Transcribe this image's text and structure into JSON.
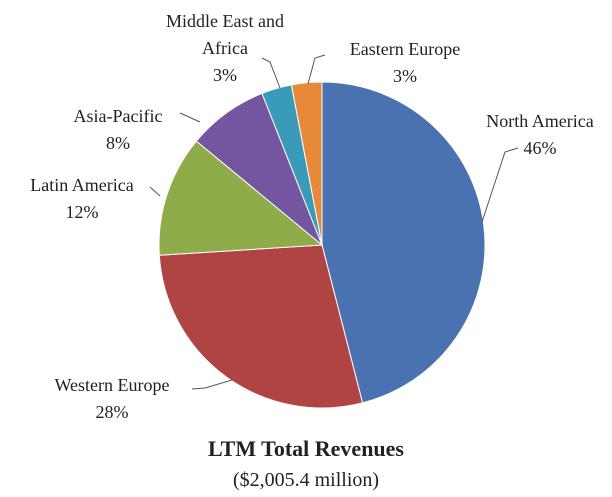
{
  "chart_data": {
    "type": "pie",
    "title": "LTM Total Revenues",
    "subtitle": "($2,005.4 million)",
    "categories": [
      "North America",
      "Western Europe",
      "Latin America",
      "Asia-Pacific",
      "Middle East and Africa",
      "Eastern Europe"
    ],
    "values": [
      46,
      28,
      12,
      8,
      3,
      3
    ],
    "value_labels": [
      "46%",
      "28%",
      "12%",
      "8%",
      "3%",
      "3%"
    ],
    "colors": [
      "#4a72b0",
      "#b04442",
      "#8fac4b",
      "#7456a0",
      "#3a9bb8",
      "#e68a3a"
    ]
  }
}
